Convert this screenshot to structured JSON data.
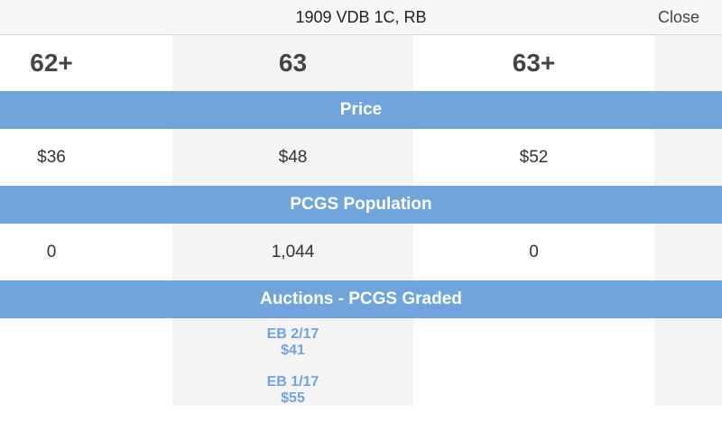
{
  "header": {
    "title": "1909 VDB 1C, RB",
    "close_label": "Close"
  },
  "grades": [
    "62+",
    "63",
    "63+"
  ],
  "sections": {
    "price": {
      "label": "Price",
      "values": [
        "$36",
        "$48",
        "$52"
      ]
    },
    "population": {
      "label": "PCGS Population",
      "values": [
        "0",
        "1,044",
        "0"
      ]
    },
    "auctions": {
      "label": "Auctions - PCGS Graded",
      "entries": [
        {
          "date": "EB 2/17",
          "price": "$41"
        },
        {
          "date": "EB 1/17",
          "price": "$55"
        }
      ]
    }
  },
  "colors": {
    "band": "#6fa4dc",
    "link": "#6fa4dc",
    "shade": "#f4f4f4"
  }
}
